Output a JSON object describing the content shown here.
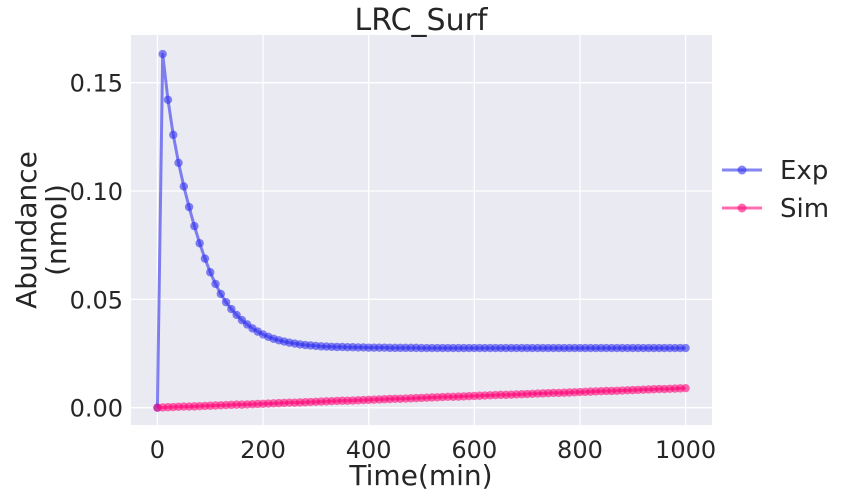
{
  "chart_data": {
    "type": "line",
    "title": "LRC_Surf",
    "xlabel": "Time(min)",
    "ylabel_lines": [
      "Abundance",
      "(nmol)"
    ],
    "xlim": [
      -50,
      1050
    ],
    "ylim": [
      -0.008,
      0.172
    ],
    "xticks": [
      0,
      200,
      400,
      600,
      800,
      1000
    ],
    "yticks": [
      0.0,
      0.05,
      0.1,
      0.15
    ],
    "xtick_labels": [
      "0",
      "200",
      "400",
      "600",
      "800",
      "1000"
    ],
    "ytick_labels": [
      "0.00",
      "0.05",
      "0.10",
      "0.15"
    ],
    "grid": true,
    "legend_position": "right-outside",
    "x": [
      0,
      10,
      20,
      30,
      40,
      50,
      60,
      70,
      80,
      90,
      100,
      110,
      120,
      130,
      140,
      150,
      160,
      170,
      180,
      190,
      200,
      210,
      220,
      230,
      240,
      250,
      260,
      270,
      280,
      290,
      300,
      310,
      320,
      330,
      340,
      350,
      360,
      370,
      380,
      390,
      400,
      410,
      420,
      430,
      440,
      450,
      460,
      470,
      480,
      490,
      500,
      510,
      520,
      530,
      540,
      550,
      560,
      570,
      580,
      590,
      600,
      610,
      620,
      630,
      640,
      650,
      660,
      670,
      680,
      690,
      700,
      710,
      720,
      730,
      740,
      750,
      760,
      770,
      780,
      790,
      800,
      810,
      820,
      830,
      840,
      850,
      860,
      870,
      880,
      890,
      900,
      910,
      920,
      930,
      940,
      950,
      960,
      970,
      980,
      990,
      1000
    ],
    "series": [
      {
        "name": "Exp",
        "color": "#3333ee",
        "values": [
          0.0,
          0.1632,
          0.1421,
          0.1259,
          0.113,
          0.1021,
          0.0926,
          0.0838,
          0.0759,
          0.0688,
          0.0625,
          0.0571,
          0.0525,
          0.0487,
          0.0455,
          0.0428,
          0.0404,
          0.0384,
          0.0366,
          0.0351,
          0.0338,
          0.0327,
          0.0318,
          0.0311,
          0.0305,
          0.03,
          0.0296,
          0.0292,
          0.0289,
          0.0287,
          0.0285,
          0.0283,
          0.0282,
          0.0281,
          0.028,
          0.028,
          0.0279,
          0.0279,
          0.0278,
          0.0278,
          0.0277,
          0.0277,
          0.0277,
          0.0277,
          0.0276,
          0.0276,
          0.0276,
          0.0276,
          0.0276,
          0.0276,
          0.0275,
          0.0275,
          0.0275,
          0.0275,
          0.0275,
          0.0275,
          0.0275,
          0.0275,
          0.0275,
          0.0275,
          0.0275,
          0.0275,
          0.0275,
          0.0275,
          0.0275,
          0.0275,
          0.0275,
          0.0275,
          0.0275,
          0.0275,
          0.0275,
          0.0275,
          0.0275,
          0.0275,
          0.0275,
          0.0275,
          0.0275,
          0.0275,
          0.0275,
          0.0275,
          0.0275,
          0.0275,
          0.0275,
          0.0275,
          0.0275,
          0.0275,
          0.0275,
          0.0275,
          0.0275,
          0.0275,
          0.0275,
          0.0275,
          0.0275,
          0.0275,
          0.0275,
          0.0275,
          0.0275,
          0.0275,
          0.0275,
          0.0275,
          0.0275
        ]
      },
      {
        "name": "Sim",
        "color": "#ff0a7a",
        "values": [
          0.0,
          0.0001,
          0.0002,
          0.0003,
          0.0004,
          0.0005,
          0.0005,
          0.0006,
          0.0007,
          0.0008,
          0.0009,
          0.001,
          0.0011,
          0.0012,
          0.0013,
          0.0014,
          0.0014,
          0.0015,
          0.0016,
          0.0017,
          0.0018,
          0.0019,
          0.002,
          0.0021,
          0.0022,
          0.0023,
          0.0023,
          0.0024,
          0.0025,
          0.0026,
          0.0027,
          0.0028,
          0.0029,
          0.003,
          0.0031,
          0.0032,
          0.0032,
          0.0033,
          0.0034,
          0.0035,
          0.0036,
          0.0037,
          0.0038,
          0.0039,
          0.004,
          0.0041,
          0.0041,
          0.0042,
          0.0043,
          0.0044,
          0.0045,
          0.0046,
          0.0047,
          0.0048,
          0.0049,
          0.005,
          0.005,
          0.0051,
          0.0052,
          0.0053,
          0.0054,
          0.0055,
          0.0056,
          0.0057,
          0.0058,
          0.0059,
          0.0059,
          0.006,
          0.0061,
          0.0062,
          0.0063,
          0.0064,
          0.0065,
          0.0066,
          0.0067,
          0.0068,
          0.0068,
          0.0069,
          0.007,
          0.0071,
          0.0072,
          0.0073,
          0.0074,
          0.0075,
          0.0076,
          0.0077,
          0.0077,
          0.0078,
          0.0079,
          0.008,
          0.0081,
          0.0082,
          0.0083,
          0.0084,
          0.0085,
          0.0086,
          0.0086,
          0.0087,
          0.0088,
          0.0089,
          0.009
        ]
      }
    ]
  }
}
